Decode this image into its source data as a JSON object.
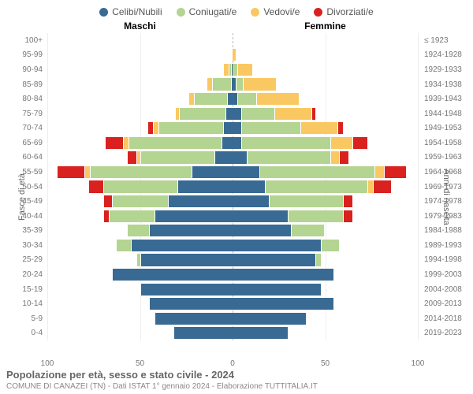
{
  "type": "population-pyramid",
  "title": "Popolazione per età, sesso e stato civile - 2024",
  "subtitle": "COMUNE DI CANAZEI (TN) - Dati ISTAT 1° gennaio 2024 - Elaborazione TUTTITALIA.IT",
  "legend": [
    {
      "label": "Celibi/Nubili",
      "color": "#396a93"
    },
    {
      "label": "Coniugati/e",
      "color": "#b4d491"
    },
    {
      "label": "Vedovi/e",
      "color": "#fac862"
    },
    {
      "label": "Divorziati/e",
      "color": "#d92120"
    }
  ],
  "male_header": "Maschi",
  "female_header": "Femmine",
  "left_axis_title": "Fasce di età",
  "right_axis_title": "Anni di nascita",
  "x_max": 100,
  "x_ticks": [
    100,
    50,
    0,
    50,
    100
  ],
  "colors": {
    "celibi": "#396a93",
    "coniugati": "#b4d491",
    "vedovi": "#fac862",
    "divorziati": "#d92120",
    "grid": "#eeeeee",
    "centerline": "#bbbbbb",
    "text": "#777777",
    "background": "#ffffff"
  },
  "fontsize": {
    "label": 10,
    "legend": 12,
    "title": 13
  },
  "rows": [
    {
      "age": "100+",
      "year": "≤ 1923",
      "m": [
        0,
        0,
        0,
        0
      ],
      "f": [
        0,
        0,
        0,
        0
      ]
    },
    {
      "age": "95-99",
      "year": "1924-1928",
      "m": [
        0,
        0,
        0,
        0
      ],
      "f": [
        0,
        0,
        2,
        0
      ]
    },
    {
      "age": "90-94",
      "year": "1929-1933",
      "m": [
        1,
        1,
        3,
        0
      ],
      "f": [
        0,
        3,
        8,
        0
      ]
    },
    {
      "age": "85-89",
      "year": "1934-1938",
      "m": [
        1,
        10,
        3,
        0
      ],
      "f": [
        2,
        4,
        18,
        0
      ]
    },
    {
      "age": "80-84",
      "year": "1939-1943",
      "m": [
        3,
        18,
        3,
        0
      ],
      "f": [
        3,
        10,
        23,
        0
      ]
    },
    {
      "age": "75-79",
      "year": "1944-1948",
      "m": [
        4,
        25,
        2,
        0
      ],
      "f": [
        5,
        18,
        20,
        2
      ]
    },
    {
      "age": "70-74",
      "year": "1949-1953",
      "m": [
        5,
        35,
        3,
        3
      ],
      "f": [
        5,
        32,
        20,
        3
      ]
    },
    {
      "age": "65-69",
      "year": "1954-1958",
      "m": [
        6,
        50,
        3,
        10
      ],
      "f": [
        5,
        48,
        12,
        8
      ]
    },
    {
      "age": "60-64",
      "year": "1959-1963",
      "m": [
        10,
        40,
        2,
        5
      ],
      "f": [
        8,
        45,
        5,
        5
      ]
    },
    {
      "age": "55-59",
      "year": "1964-1968",
      "m": [
        22,
        55,
        3,
        15
      ],
      "f": [
        15,
        62,
        5,
        12
      ]
    },
    {
      "age": "50-54",
      "year": "1969-1973",
      "m": [
        30,
        40,
        0,
        8
      ],
      "f": [
        18,
        55,
        3,
        10
      ]
    },
    {
      "age": "45-49",
      "year": "1974-1978",
      "m": [
        35,
        30,
        0,
        5
      ],
      "f": [
        20,
        40,
        0,
        5
      ]
    },
    {
      "age": "40-44",
      "year": "1979-1983",
      "m": [
        42,
        25,
        0,
        3
      ],
      "f": [
        30,
        30,
        0,
        5
      ]
    },
    {
      "age": "35-39",
      "year": "1984-1988",
      "m": [
        45,
        12,
        0,
        0
      ],
      "f": [
        32,
        18,
        0,
        0
      ]
    },
    {
      "age": "30-34",
      "year": "1989-1993",
      "m": [
        55,
        8,
        0,
        0
      ],
      "f": [
        48,
        10,
        0,
        0
      ]
    },
    {
      "age": "25-29",
      "year": "1994-1998",
      "m": [
        50,
        2,
        0,
        0
      ],
      "f": [
        45,
        3,
        0,
        0
      ]
    },
    {
      "age": "20-24",
      "year": "1999-2003",
      "m": [
        65,
        0,
        0,
        0
      ],
      "f": [
        55,
        0,
        0,
        0
      ]
    },
    {
      "age": "15-19",
      "year": "2004-2008",
      "m": [
        50,
        0,
        0,
        0
      ],
      "f": [
        48,
        0,
        0,
        0
      ]
    },
    {
      "age": "10-14",
      "year": "2009-2013",
      "m": [
        45,
        0,
        0,
        0
      ],
      "f": [
        55,
        0,
        0,
        0
      ]
    },
    {
      "age": "5-9",
      "year": "2014-2018",
      "m": [
        42,
        0,
        0,
        0
      ],
      "f": [
        40,
        0,
        0,
        0
      ]
    },
    {
      "age": "0-4",
      "year": "2019-2023",
      "m": [
        32,
        0,
        0,
        0
      ],
      "f": [
        30,
        0,
        0,
        0
      ]
    }
  ]
}
